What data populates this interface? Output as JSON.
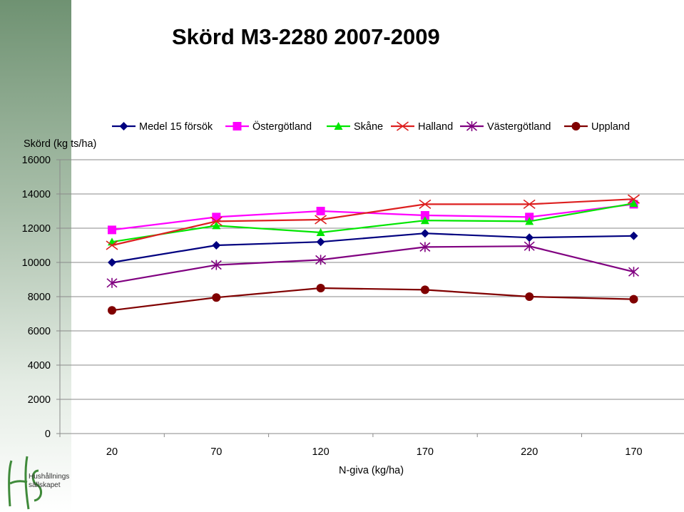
{
  "slide": {
    "title": "Skörd M3-2280 2007-2009"
  },
  "logo": {
    "line1": "Hushållnings",
    "line2": "sällskapet"
  },
  "chart_data": {
    "type": "line",
    "title": "Skörd M3-2280 2007-2009",
    "ylabel": "Skörd (kg ts/ha)",
    "xlabel": "N-giva (kg/ha)",
    "categories": [
      "20",
      "70",
      "120",
      "170",
      "220",
      "170"
    ],
    "ylim": [
      0,
      16000
    ],
    "yticks": [
      0,
      2000,
      4000,
      6000,
      8000,
      10000,
      12000,
      14000,
      16000
    ],
    "grid": "horizontal",
    "legend_position": "top",
    "series": [
      {
        "name": "Medel 15 försök",
        "color": "#00007f",
        "marker": "diamond",
        "values": [
          10000,
          11000,
          11200,
          11700,
          11450,
          11550
        ]
      },
      {
        "name": "Östergötland",
        "color": "#ff00ff",
        "marker": "square",
        "values": [
          11900,
          12650,
          13000,
          12750,
          12650,
          13400
        ]
      },
      {
        "name": "Skåne",
        "color": "#00e600",
        "marker": "triangle",
        "values": [
          11200,
          12150,
          11750,
          12450,
          12400,
          13450
        ]
      },
      {
        "name": "Halland",
        "color": "#dd1f1f",
        "marker": "x",
        "values": [
          11000,
          12400,
          12500,
          13400,
          13400,
          13700
        ]
      },
      {
        "name": "Västergötland",
        "color": "#800080",
        "marker": "asterisk",
        "values": [
          8800,
          9850,
          10150,
          10900,
          10950,
          9450
        ]
      },
      {
        "name": "Uppland",
        "color": "#800000",
        "marker": "circle",
        "values": [
          7200,
          7950,
          8500,
          8400,
          8000,
          7850
        ]
      }
    ]
  }
}
